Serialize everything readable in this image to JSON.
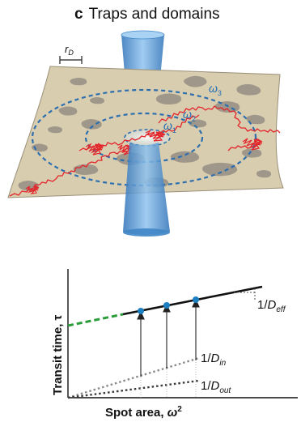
{
  "panel": {
    "letter": "c",
    "title": "Traps and domains"
  },
  "illustration": {
    "scale_bar_label": "r",
    "scale_bar_sub": "D",
    "spot_labels": [
      {
        "base": "ω",
        "sub": "1"
      },
      {
        "base": "ω",
        "sub": "2"
      },
      {
        "base": "ω",
        "sub": "3"
      }
    ],
    "colors": {
      "membrane": "#d9cdb0",
      "membrane_edge": "#9a8f78",
      "domain": "#9c9688",
      "trajectory": "#e3262b",
      "beam": "#3f86c7",
      "rings": "#2d6fae"
    }
  },
  "plot": {
    "ylabel_text": "Transit time, ",
    "ylabel_symbol": "τ",
    "xlabel_text": "Spot area, ",
    "xlabel_symbol": "ω",
    "xlabel_sup": "2",
    "line_labels": {
      "eff": {
        "pre": "1/",
        "base": "D",
        "sub": "eff"
      },
      "in": {
        "pre": "1/",
        "base": "D",
        "sub": "in"
      },
      "out": {
        "pre": "1/",
        "base": "D",
        "sub": "out"
      }
    },
    "colors": {
      "solid_line": "#111111",
      "extrapolation": "#2a9d3a",
      "points": "#1c7fc1",
      "in_line": "#8a8a8a",
      "out_line": "#3a3a3a"
    }
  }
}
